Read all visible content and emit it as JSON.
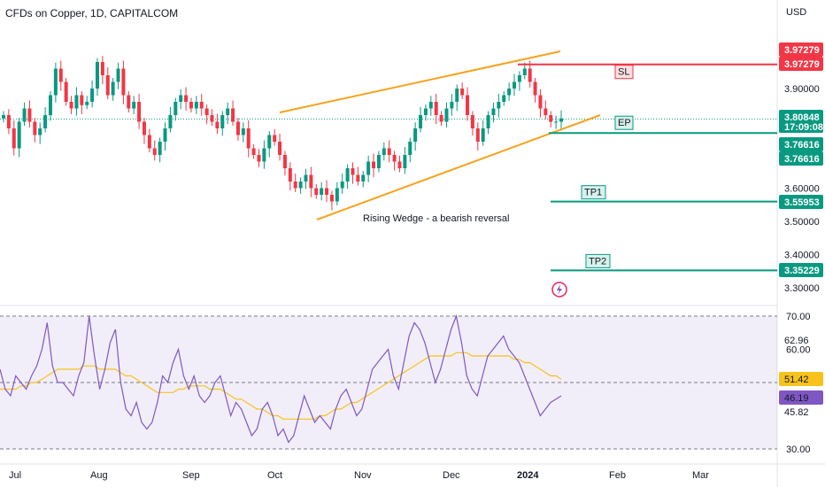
{
  "header": {
    "title": "CFDs on Copper, 1D, CAPITALCOM",
    "currency": "USD"
  },
  "chart_data": [
    {
      "type": "candlestick",
      "ylim": [
        3.25,
        4.15
      ],
      "y_ticks": [
        "3.90000",
        "3.60000",
        "3.50000",
        "3.40000",
        "3.30000"
      ],
      "x_ticks": [
        "Jul",
        "Aug",
        "Sep",
        "Oct",
        "Nov",
        "Dec",
        "2024",
        "Feb",
        "Mar"
      ],
      "price_tags": [
        {
          "text": "3.97279",
          "color": "#f23645"
        },
        {
          "text": "3.97279",
          "color": "#f23645"
        },
        {
          "text": "3.80848",
          "sub": "17:09:08",
          "color": "#089981"
        },
        {
          "text": "3.76616",
          "color": "#089981"
        },
        {
          "text": "3.76616",
          "color": "#089981"
        },
        {
          "text": "3.55953",
          "color": "#089981"
        },
        {
          "text": "3.35229",
          "color": "#089981"
        }
      ],
      "levels": [
        {
          "label": "SL",
          "value": 3.97279,
          "color": "#f23645"
        },
        {
          "label": "EP",
          "value": 3.76616,
          "color": "#089981"
        },
        {
          "label": "TP1",
          "value": 3.55953,
          "color": "#089981"
        },
        {
          "label": "TP2",
          "value": 3.35229,
          "color": "#089981"
        }
      ],
      "current_price": 3.80848,
      "annotation": "Rising Wedge - a bearish reversal",
      "wedge_color": "#f7a21b",
      "up_color": "#089981",
      "down_color": "#f23645",
      "closes": [
        3.82,
        3.78,
        3.72,
        3.8,
        3.84,
        3.8,
        3.76,
        3.78,
        3.82,
        3.88,
        3.96,
        3.92,
        3.86,
        3.84,
        3.88,
        3.85,
        3.86,
        3.9,
        3.98,
        3.94,
        3.88,
        3.92,
        3.96,
        3.88,
        3.84,
        3.86,
        3.8,
        3.76,
        3.72,
        3.7,
        3.74,
        3.78,
        3.82,
        3.86,
        3.88,
        3.86,
        3.84,
        3.86,
        3.84,
        3.82,
        3.8,
        3.78,
        3.82,
        3.84,
        3.8,
        3.76,
        3.78,
        3.72,
        3.7,
        3.68,
        3.72,
        3.76,
        3.74,
        3.7,
        3.66,
        3.62,
        3.6,
        3.62,
        3.64,
        3.6,
        3.58,
        3.6,
        3.58,
        3.56,
        3.6,
        3.62,
        3.66,
        3.64,
        3.62,
        3.64,
        3.68,
        3.66,
        3.7,
        3.72,
        3.7,
        3.68,
        3.66,
        3.7,
        3.74,
        3.78,
        3.82,
        3.84,
        3.86,
        3.82,
        3.8,
        3.84,
        3.86,
        3.9,
        3.88,
        3.82,
        3.78,
        3.74,
        3.78,
        3.82,
        3.84,
        3.86,
        3.88,
        3.9,
        3.92,
        3.94,
        3.96,
        3.92,
        3.88,
        3.84,
        3.82,
        3.8,
        3.8,
        3.81
      ],
      "rsi": {
        "y_ticks": [
          "70.00",
          "60.00",
          "30.00"
        ],
        "tags": [
          {
            "text": "62.96",
            "color": "transparent",
            "text_color": "#131722"
          },
          {
            "text": "51.42",
            "color": "#f7c21b",
            "text_color": "#131722"
          },
          {
            "text": "46.19",
            "color": "#7e57c2",
            "text_color": "#ffffff"
          },
          {
            "text": "45.82",
            "color": "transparent",
            "text_color": "#131722"
          }
        ],
        "ylim": [
          27,
          75
        ],
        "upper": 70,
        "mid": 50,
        "lower": 30,
        "values": [
          54,
          48,
          46,
          52,
          50,
          48,
          52,
          55,
          60,
          68,
          55,
          50,
          50,
          48,
          46,
          52,
          56,
          70,
          58,
          48,
          54,
          62,
          66,
          50,
          42,
          40,
          44,
          38,
          36,
          38,
          44,
          52,
          50,
          56,
          60,
          52,
          48,
          52,
          46,
          44,
          46,
          50,
          52,
          46,
          40,
          44,
          42,
          38,
          34,
          36,
          42,
          44,
          40,
          34,
          36,
          32,
          34,
          40,
          46,
          42,
          38,
          40,
          38,
          36,
          42,
          46,
          48,
          44,
          40,
          42,
          48,
          54,
          56,
          58,
          60,
          52,
          48,
          56,
          64,
          68,
          66,
          62,
          56,
          50,
          54,
          60,
          66,
          70,
          62,
          52,
          48,
          46,
          52,
          58,
          60,
          62,
          64,
          60,
          58,
          56,
          52,
          48,
          44,
          40,
          42,
          44,
          45,
          46
        ],
        "ma": [
          48,
          48,
          48,
          48,
          49,
          49,
          50,
          50,
          51,
          52,
          53,
          54,
          54,
          54,
          54,
          54,
          55,
          55,
          55,
          54,
          54,
          54,
          54,
          53,
          52,
          52,
          51,
          50,
          49,
          48,
          47,
          47,
          47,
          47,
          48,
          48,
          49,
          49,
          49,
          49,
          48,
          48,
          48,
          47,
          46,
          45,
          45,
          44,
          43,
          42,
          42,
          41,
          40,
          40,
          39,
          39,
          39,
          39,
          39,
          39,
          39,
          40,
          40,
          41,
          42,
          42,
          43,
          44,
          44,
          45,
          46,
          47,
          48,
          49,
          50,
          51,
          52,
          53,
          54,
          55,
          56,
          57,
          58,
          58,
          58,
          58,
          58,
          59,
          59,
          59,
          58,
          58,
          58,
          58,
          58,
          58,
          58,
          58,
          57,
          57,
          56,
          56,
          55,
          54,
          53,
          52,
          52,
          51
        ]
      }
    }
  ]
}
